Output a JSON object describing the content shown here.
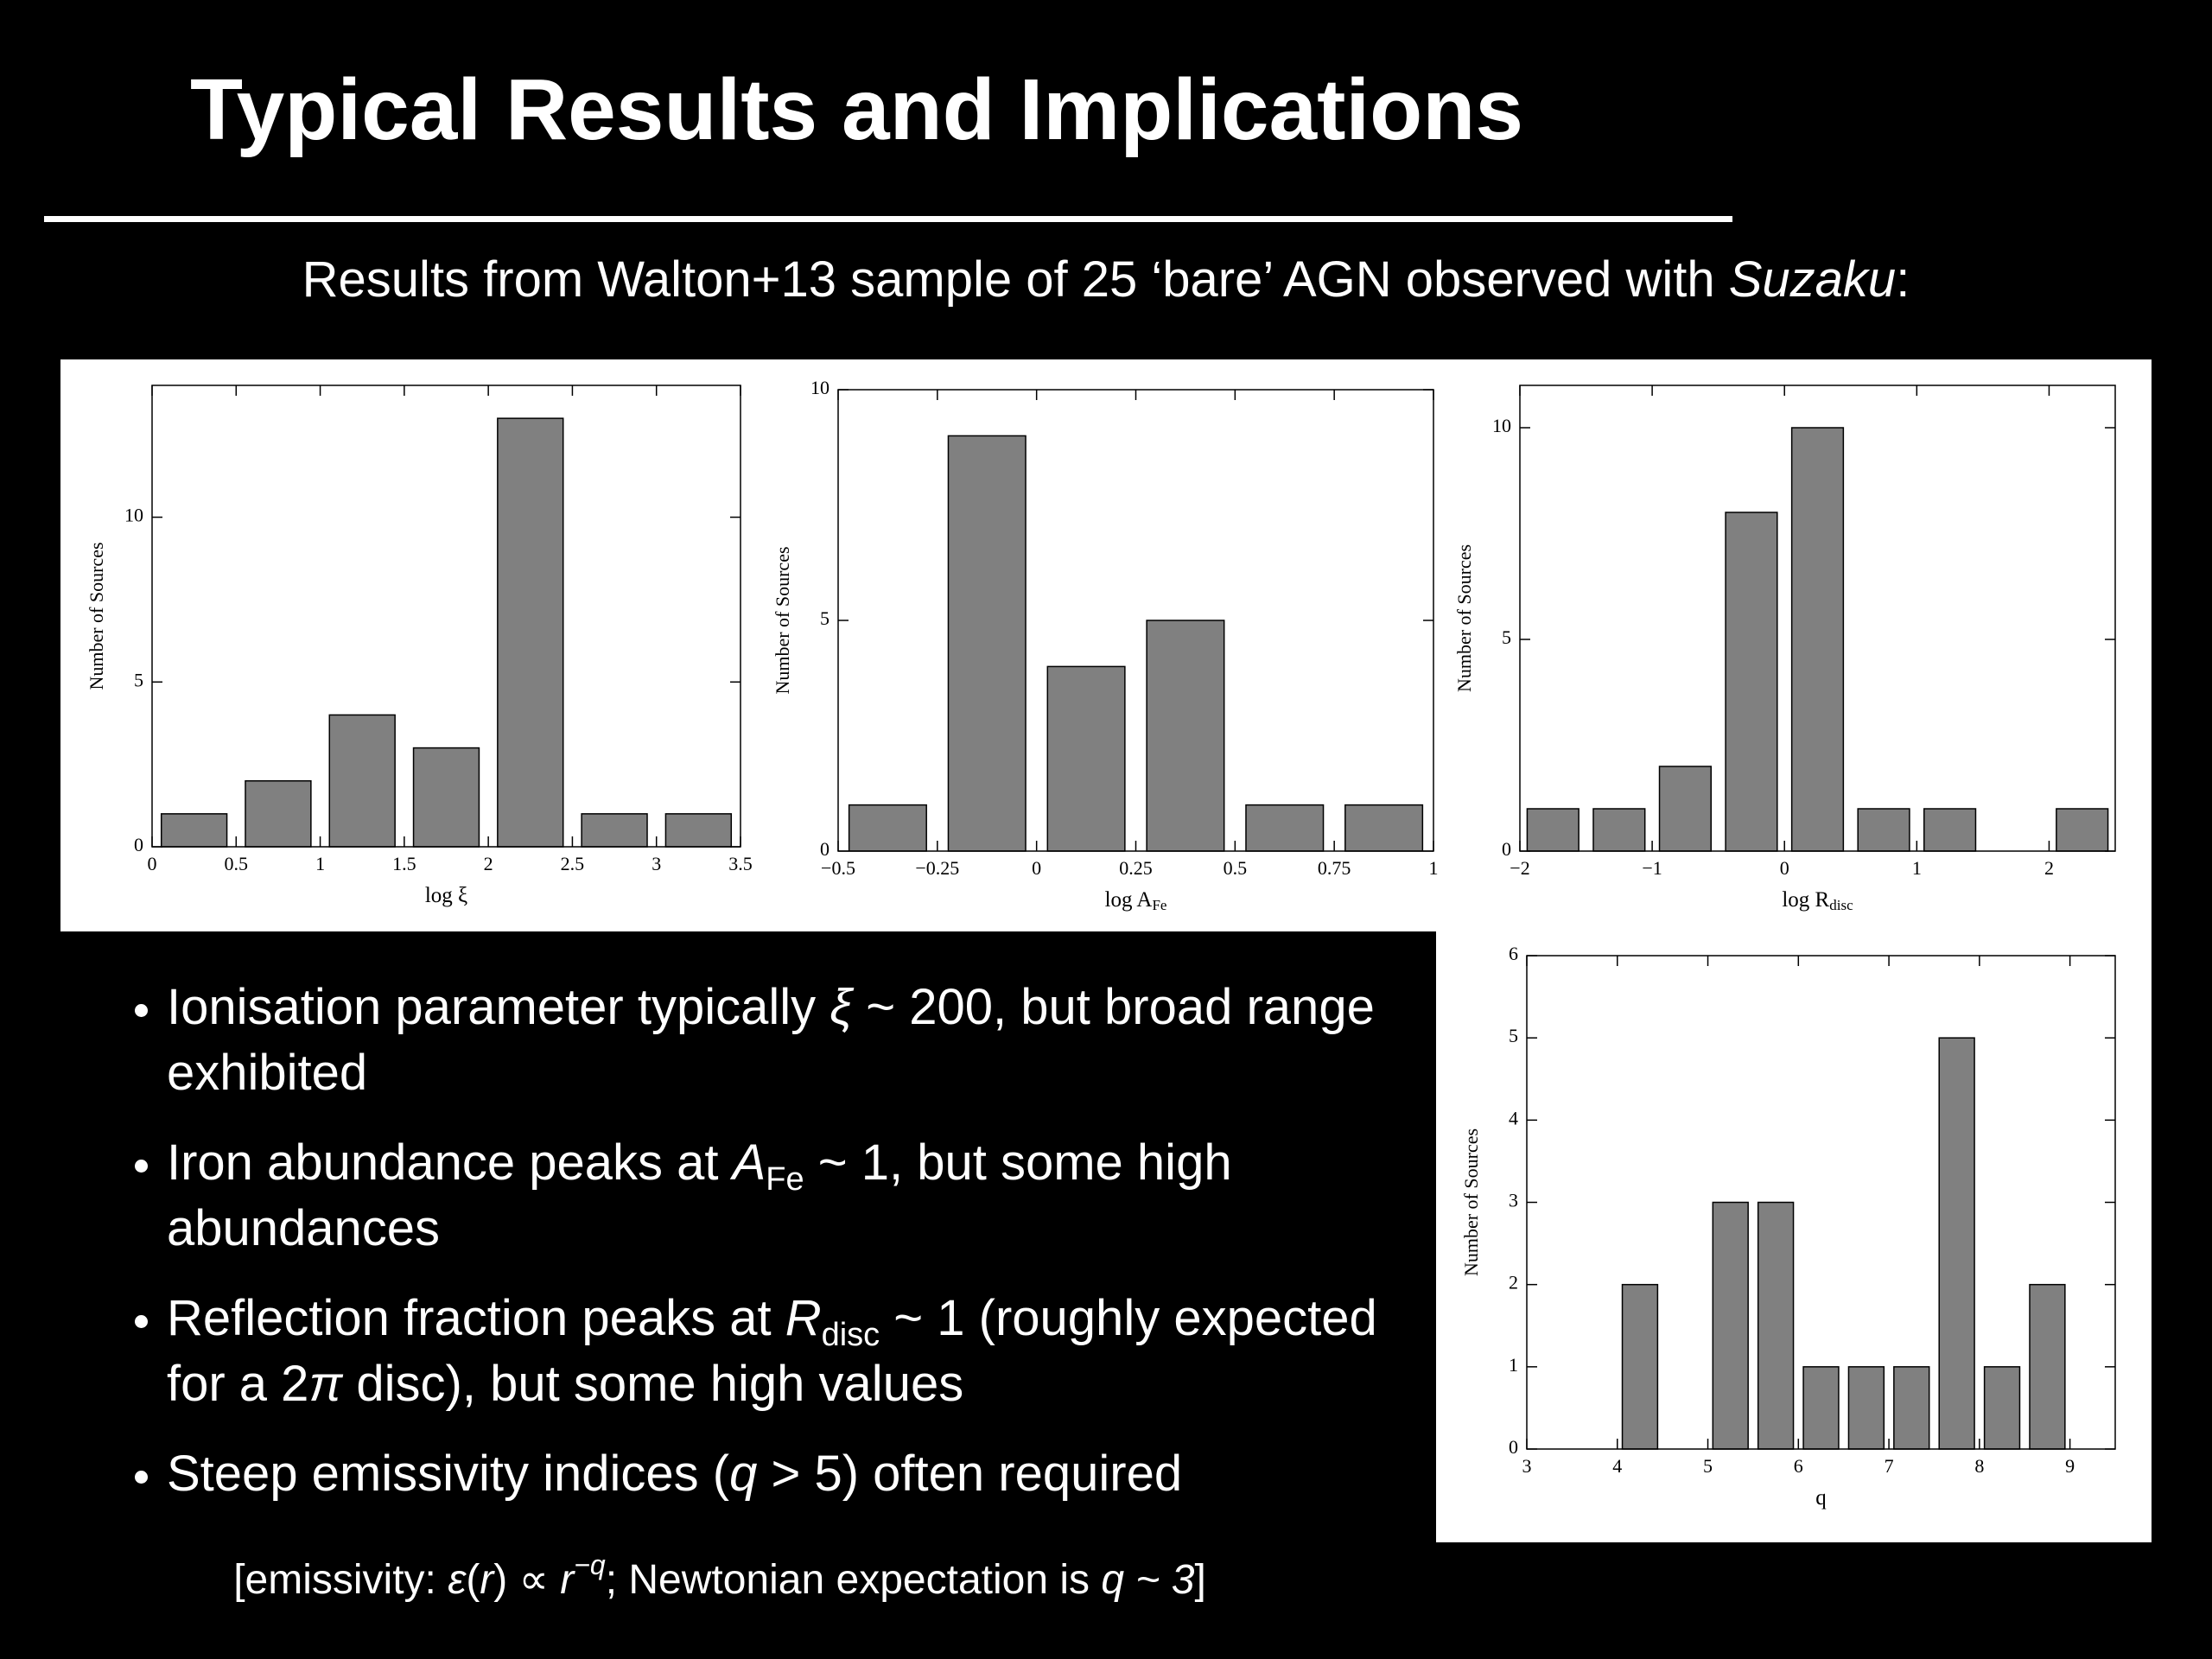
{
  "slide": {
    "title": "Typical Results and Implications",
    "subtitle": [
      "Results from Walton+13 sample of 25 ‘bare’ AGN observed with ",
      "Suzaku",
      ":"
    ],
    "bullets": [
      [
        "Ionisation parameter typically ",
        "ξ",
        " ~ 200, but broad range exhibited"
      ],
      [
        "Iron abundance peaks at ",
        "A",
        "Fe",
        " ~ 1, but some high abundances"
      ],
      [
        "Reflection fraction peaks at ",
        "R",
        "disc",
        " ~ 1 (roughly expected for a 2",
        "π",
        " disc), but some high values"
      ],
      [
        "Steep emissivity indices (",
        "q",
        " > 5) often required"
      ]
    ],
    "note": [
      "[emissivity: ",
      "ε",
      "(",
      "r",
      ") ∝ ",
      "r",
      "−q",
      "; Newtonian expectation is ",
      "q ~ 3",
      "]"
    ]
  },
  "chart_data": [
    {
      "type": "histogram",
      "xlabel": "log ξ",
      "ylabel": "Number of Sources",
      "color": "#808080",
      "bins": [
        0,
        0.5,
        1,
        1.5,
        2,
        2.5,
        3,
        3.5
      ],
      "values": [
        1,
        2,
        4,
        3,
        13,
        1,
        1
      ],
      "xlim": [
        0,
        3.5
      ],
      "ylim": [
        0,
        14
      ],
      "xticks": [
        0,
        0.5,
        1,
        1.5,
        2,
        2.5,
        3,
        3.5
      ],
      "yticks": [
        0,
        5,
        10
      ]
    },
    {
      "type": "histogram",
      "xlabel": "log A",
      "xlabel_sub": "Fe",
      "ylabel": "Number of Sources",
      "color": "#808080",
      "bins": [
        -0.5,
        -0.25,
        0,
        0.25,
        0.5,
        0.75,
        1
      ],
      "values": [
        1,
        9,
        4,
        5,
        1,
        1
      ],
      "xlim": [
        -0.5,
        1
      ],
      "ylim": [
        0,
        10
      ],
      "xticks": [
        {
          "value": -0.5,
          "label": "−0.5"
        },
        {
          "value": -0.25,
          "label": "−0.25"
        },
        0,
        0.25,
        0.5,
        0.75,
        1
      ],
      "yticks": [
        0,
        5,
        10
      ]
    },
    {
      "type": "histogram",
      "xlabel": "log R",
      "xlabel_sub": "disc",
      "ylabel": "Number of Sources",
      "color": "#808080",
      "bins": [
        -2,
        -1.5,
        -1,
        -0.5,
        0,
        0.5,
        1,
        1.5,
        2,
        2.5
      ],
      "values": [
        1,
        1,
        2,
        8,
        10,
        1,
        1,
        0,
        1
      ],
      "xlim": [
        -2,
        2.5
      ],
      "ylim": [
        0,
        11
      ],
      "xticks": [
        {
          "value": -2,
          "label": "−2"
        },
        {
          "value": -1,
          "label": "−1"
        },
        0,
        1,
        2
      ],
      "yticks": [
        0,
        5,
        10
      ]
    },
    {
      "type": "histogram",
      "xlabel": "q",
      "ylabel": "Number of Sources",
      "color": "#808080",
      "bins": [
        3,
        3.5,
        4,
        4.5,
        5,
        5.5,
        6,
        6.5,
        7,
        7.5,
        8,
        8.5,
        9,
        9.5
      ],
      "values": [
        0,
        0,
        2,
        0,
        3,
        3,
        1,
        1,
        1,
        5,
        1,
        2,
        0
      ],
      "xlim": [
        3,
        9.5
      ],
      "ylim": [
        0,
        6
      ],
      "xticks": [
        3,
        4,
        5,
        6,
        7,
        8,
        9
      ],
      "yticks": [
        0,
        1,
        2,
        3,
        4,
        5,
        6
      ]
    }
  ]
}
